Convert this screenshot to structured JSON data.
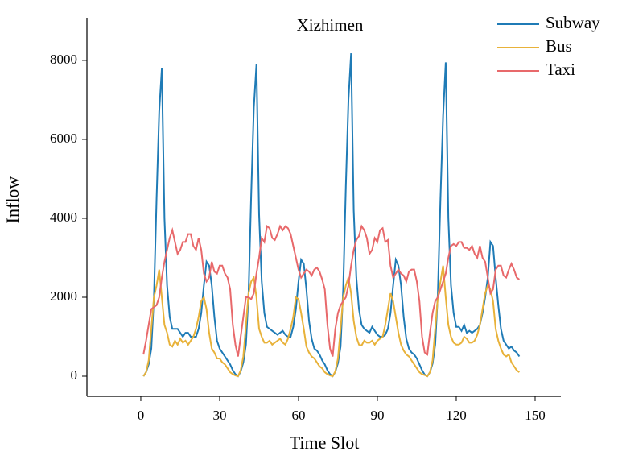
{
  "chart_data": {
    "type": "line",
    "title": "Xizhimen",
    "xlabel": "Time Slot",
    "ylabel": "Inflow",
    "x": [
      1,
      2,
      3,
      4,
      5,
      6,
      7,
      8,
      9,
      10,
      11,
      12,
      13,
      14,
      15,
      16,
      17,
      18,
      19,
      20,
      21,
      22,
      23,
      24,
      25,
      26,
      27,
      28,
      29,
      30,
      31,
      32,
      33,
      34,
      35,
      36,
      37,
      38,
      39,
      40,
      41,
      42,
      43,
      44,
      45,
      46,
      47,
      48,
      49,
      50,
      51,
      52,
      53,
      54,
      55,
      56,
      57,
      58,
      59,
      60,
      61,
      62,
      63,
      64,
      65,
      66,
      67,
      68,
      69,
      70,
      71,
      72,
      73,
      74,
      75,
      76,
      77,
      78,
      79,
      80,
      81,
      82,
      83,
      84,
      85,
      86,
      87,
      88,
      89,
      90,
      91,
      92,
      93,
      94,
      95,
      96,
      97,
      98,
      99,
      100,
      101,
      102,
      103,
      104,
      105,
      106,
      107,
      108,
      109,
      110,
      111,
      112,
      113,
      114,
      115,
      116,
      117,
      118,
      119,
      120,
      121,
      122,
      123,
      124,
      125,
      126,
      127,
      128,
      129,
      130,
      131,
      132,
      133,
      134,
      135,
      136,
      137,
      138,
      139,
      140,
      141,
      142,
      143,
      144
    ],
    "series": [
      {
        "name": "Subway",
        "color": "#1f7bb6",
        "values": [
          0,
          100,
          300,
          700,
          2000,
          4500,
          6700,
          7800,
          4000,
          2300,
          1500,
          1200,
          1200,
          1200,
          1100,
          1000,
          1100,
          1100,
          1000,
          1000,
          1000,
          1200,
          1600,
          2300,
          2900,
          2800,
          2300,
          1500,
          900,
          700,
          600,
          500,
          400,
          300,
          150,
          50,
          0,
          120,
          350,
          800,
          2100,
          4600,
          6800,
          7900,
          4100,
          2400,
          1600,
          1250,
          1200,
          1150,
          1100,
          1050,
          1100,
          1150,
          1050,
          1000,
          1000,
          1250,
          1700,
          2400,
          2950,
          2850,
          2200,
          1400,
          950,
          700,
          650,
          550,
          400,
          300,
          150,
          50,
          0,
          110,
          330,
          750,
          2200,
          4800,
          7000,
          8180,
          4200,
          2500,
          1700,
          1300,
          1200,
          1150,
          1100,
          1250,
          1150,
          1050,
          1000,
          1000,
          1050,
          1200,
          1600,
          2300,
          2950,
          2800,
          2300,
          1500,
          950,
          700,
          600,
          550,
          450,
          300,
          150,
          40,
          0,
          100,
          320,
          800,
          2100,
          4500,
          6600,
          7950,
          4000,
          2300,
          1600,
          1250,
          1250,
          1150,
          1300,
          1100,
          1150,
          1100,
          1150,
          1200,
          1300,
          1600,
          2000,
          2500,
          3400,
          3300,
          2500,
          1800,
          1200,
          900,
          800,
          700,
          750,
          650,
          600,
          500
        ]
      },
      {
        "name": "Bus",
        "color": "#e8b23a",
        "values": [
          0,
          100,
          400,
          1200,
          2000,
          2300,
          2700,
          2000,
          1300,
          1100,
          800,
          750,
          900,
          800,
          950,
          850,
          900,
          800,
          900,
          1000,
          1200,
          1500,
          1900,
          2000,
          1700,
          1100,
          700,
          600,
          450,
          450,
          350,
          300,
          200,
          100,
          50,
          20,
          0,
          150,
          500,
          1300,
          2100,
          2400,
          2500,
          2000,
          1200,
          1000,
          850,
          850,
          900,
          800,
          850,
          900,
          950,
          850,
          800,
          950,
          1200,
          1500,
          2000,
          1950,
          1600,
          1200,
          750,
          600,
          500,
          450,
          350,
          250,
          200,
          100,
          50,
          20,
          0,
          120,
          450,
          1200,
          2000,
          2300,
          2500,
          2100,
          1400,
          1000,
          800,
          780,
          900,
          850,
          850,
          900,
          800,
          900,
          950,
          1000,
          1300,
          1700,
          2100,
          1900,
          1500,
          1100,
          800,
          650,
          550,
          500,
          400,
          300,
          200,
          100,
          50,
          30,
          0,
          100,
          400,
          1200,
          2000,
          2400,
          2800,
          2000,
          1300,
          1000,
          850,
          800,
          800,
          850,
          1000,
          950,
          850,
          850,
          900,
          1050,
          1300,
          1700,
          2100,
          2300,
          2200,
          1900,
          1200,
          900,
          700,
          550,
          500,
          550,
          350,
          250,
          150,
          100
        ]
      },
      {
        "name": "Taxi",
        "color": "#e8696b",
        "values": [
          550,
          900,
          1300,
          1700,
          1750,
          1800,
          2000,
          2500,
          2900,
          3200,
          3500,
          3700,
          3400,
          3100,
          3200,
          3400,
          3400,
          3600,
          3600,
          3300,
          3200,
          3500,
          3200,
          2600,
          2400,
          2500,
          2900,
          2650,
          2600,
          2800,
          2800,
          2600,
          2500,
          2200,
          1300,
          800,
          500,
          1000,
          1500,
          2000,
          2000,
          1950,
          2100,
          2600,
          3000,
          3500,
          3400,
          3800,
          3750,
          3500,
          3450,
          3600,
          3800,
          3700,
          3800,
          3750,
          3600,
          3300,
          3000,
          2700,
          2500,
          2600,
          2700,
          2650,
          2550,
          2700,
          2750,
          2650,
          2450,
          2200,
          1300,
          700,
          500,
          1200,
          1600,
          1800,
          1900,
          2000,
          2300,
          2800,
          3200,
          3450,
          3550,
          3800,
          3700,
          3500,
          3100,
          3200,
          3500,
          3400,
          3700,
          3750,
          3400,
          3450,
          2800,
          2500,
          2600,
          2700,
          2600,
          2550,
          2400,
          2650,
          2700,
          2700,
          2400,
          1900,
          1000,
          600,
          550,
          1100,
          1600,
          1900,
          2000,
          2200,
          2400,
          2600,
          3000,
          3300,
          3350,
          3300,
          3400,
          3400,
          3250,
          3250,
          3200,
          3300,
          3100,
          3000,
          3300,
          3000,
          2900,
          2500,
          2100,
          2200,
          2700,
          2800,
          2800,
          2550,
          2500,
          2700,
          2850,
          2700,
          2500,
          2450
        ]
      }
    ],
    "xlim": [
      -20.5,
      159.8
    ],
    "xticks": [
      0,
      30,
      60,
      90,
      120,
      150
    ],
    "ylim": [
      -510,
      9080
    ],
    "yticks": [
      0,
      2000,
      4000,
      6000,
      8000
    ],
    "legend": "upper-right",
    "grid": false
  }
}
